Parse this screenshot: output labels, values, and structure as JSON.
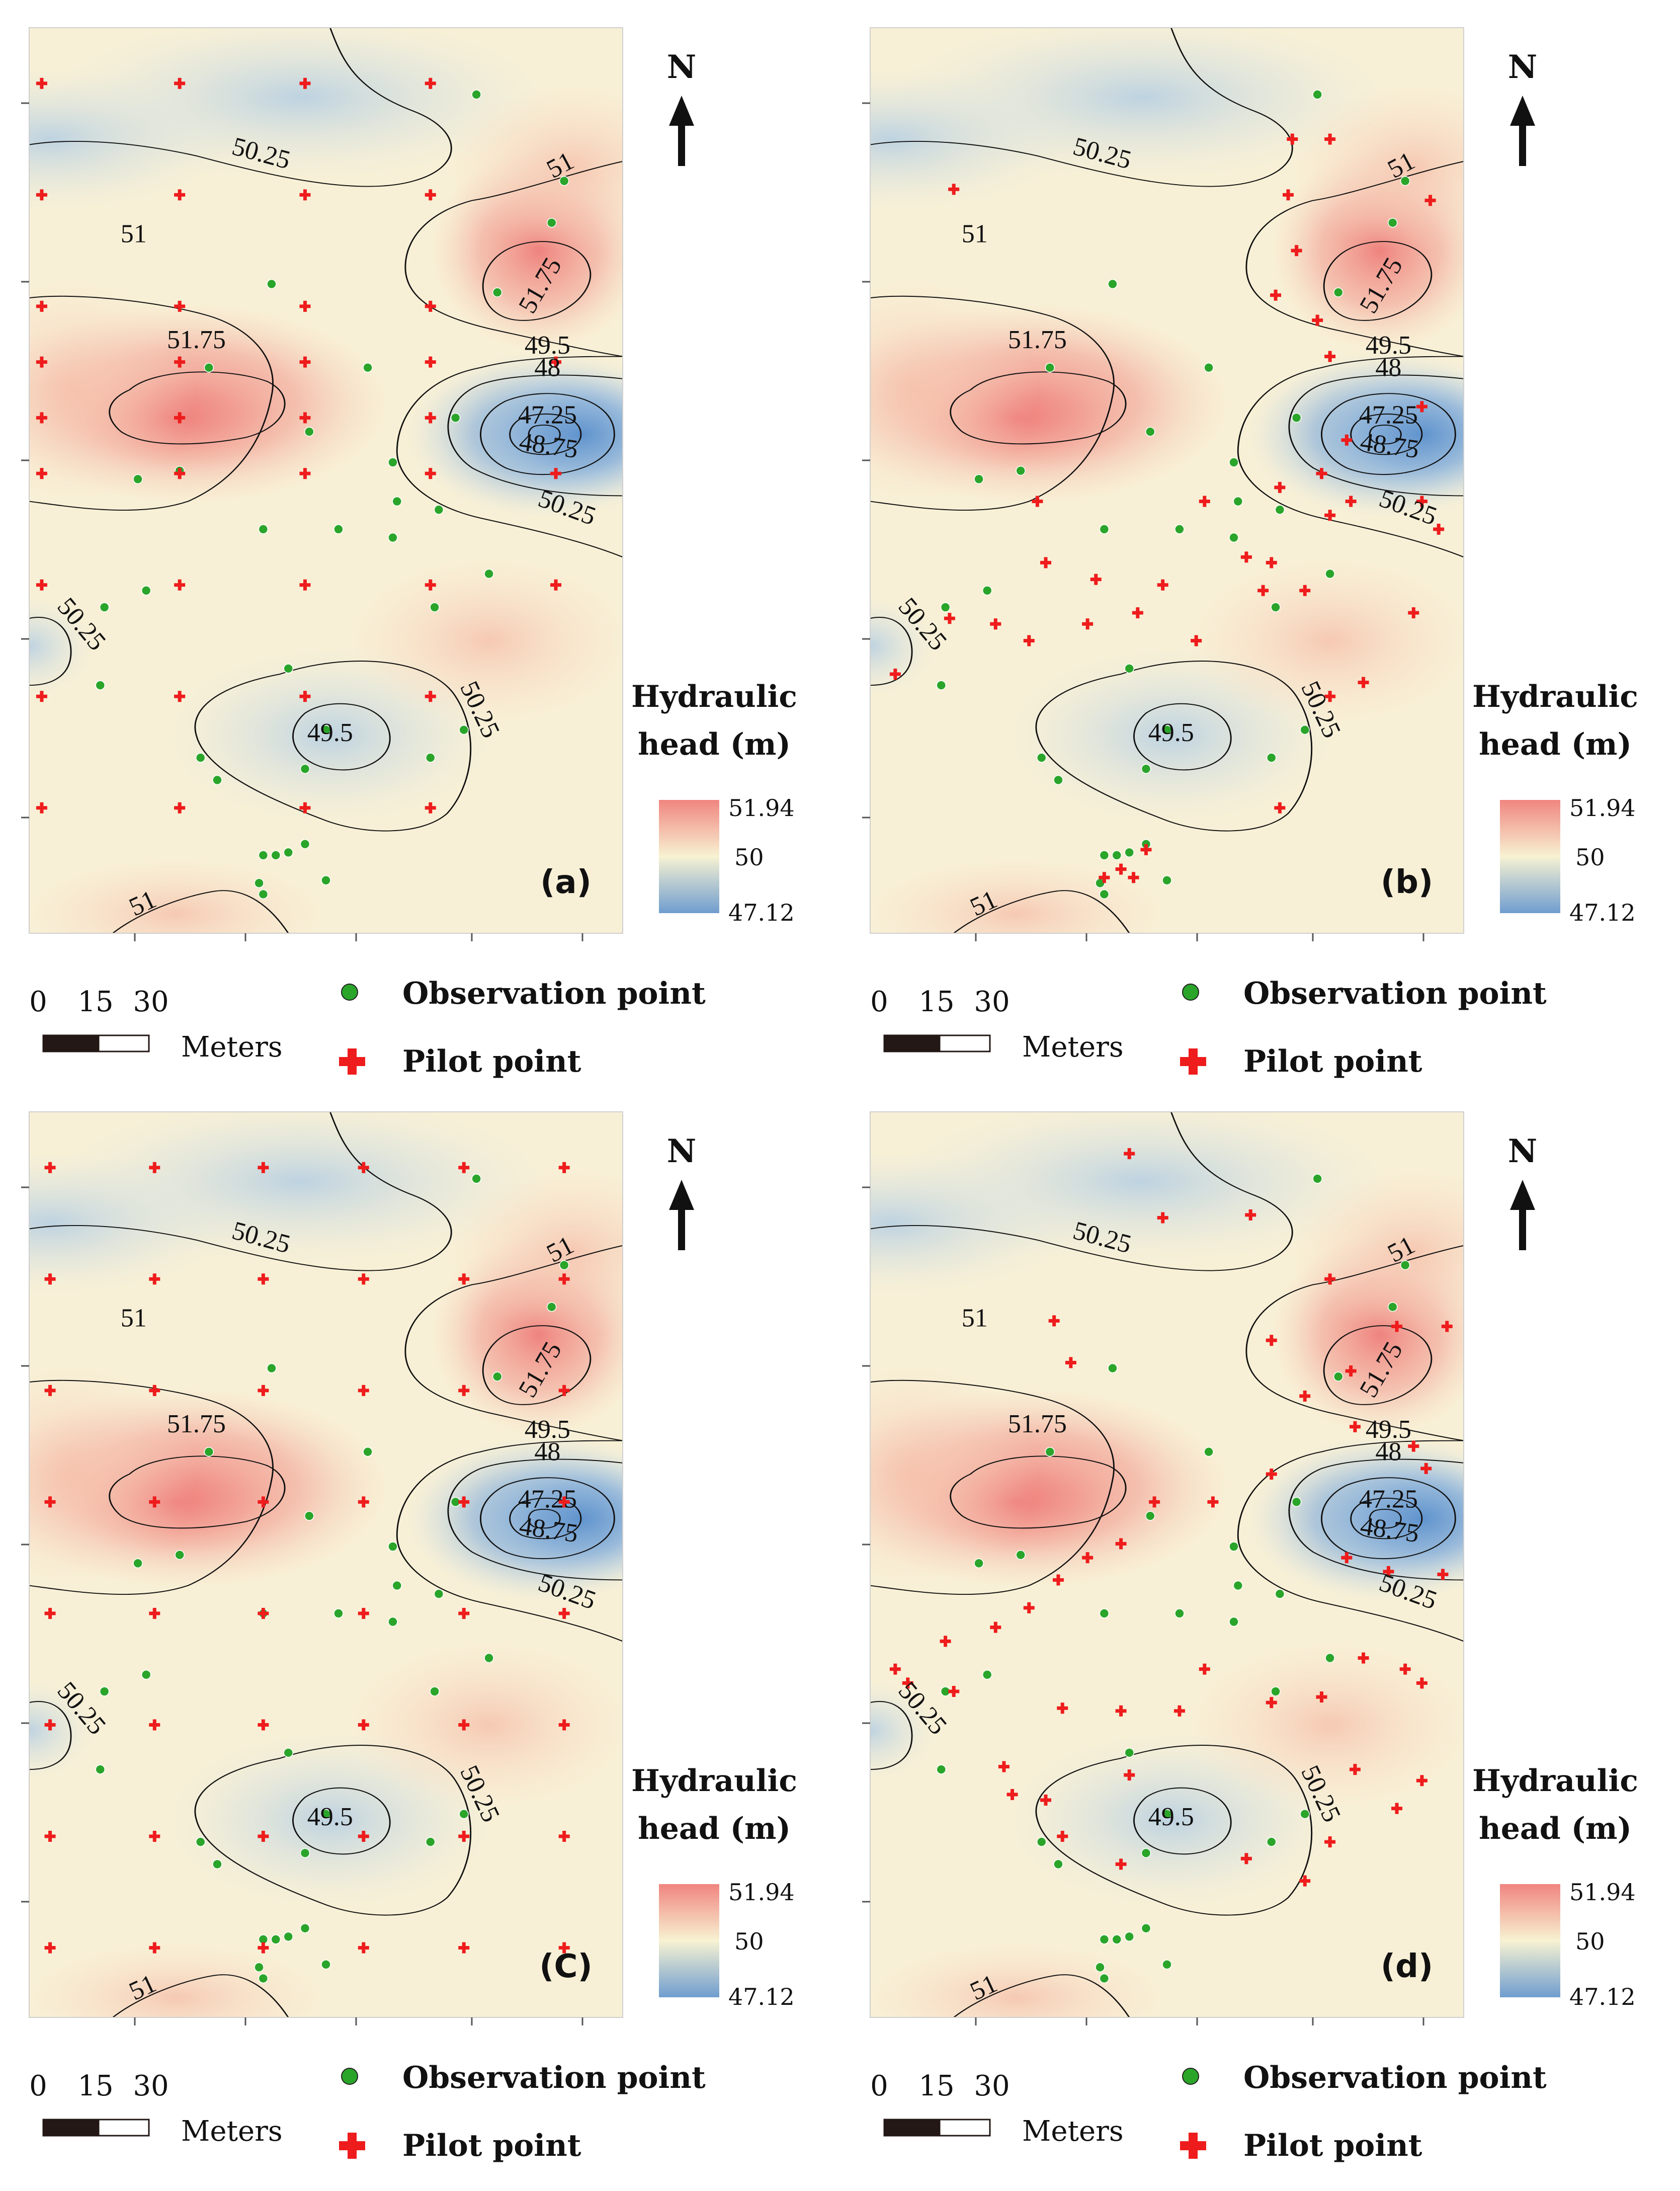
{
  "legend": {
    "title_line1": "Hydraulic",
    "title_line2": "head (m)",
    "max_value": "51.94",
    "mid_value": "50",
    "min_value": "47.12",
    "colors": {
      "high": "#f0857f",
      "mid": "#f7f2d2",
      "low": "#6f9dcf"
    }
  },
  "north_label": "N",
  "scale": {
    "label_0": "0",
    "label_15": "15",
    "label_30": "30",
    "unit": "Meters"
  },
  "symbols": {
    "observation_label": "Observation point",
    "pilot_label": "Pilot point",
    "observation_color": "#2aa52a",
    "pilot_color": "#ee1c1c"
  },
  "contour_labels": {
    "north_low": "50.25",
    "ne_rim": "51",
    "ne_high": "51.75",
    "west_rim": "51",
    "west_high": "51.75",
    "low_rim": "49.5",
    "low_48": "48",
    "low_core": "47.25",
    "low_4875": "48.75",
    "low_outer": "50.25",
    "west_edge": "50.25",
    "south_low": "49.5",
    "south_rim": "50.25",
    "south_high": "51"
  },
  "panels": [
    {
      "label": "(a)",
      "pilot_layout": "regular grid"
    },
    {
      "label": "(b)",
      "pilot_layout": "refined near observations"
    },
    {
      "label": "(C)",
      "pilot_layout": "dense regular grid"
    },
    {
      "label": "(d)",
      "pilot_layout": "refined near observations"
    }
  ]
}
